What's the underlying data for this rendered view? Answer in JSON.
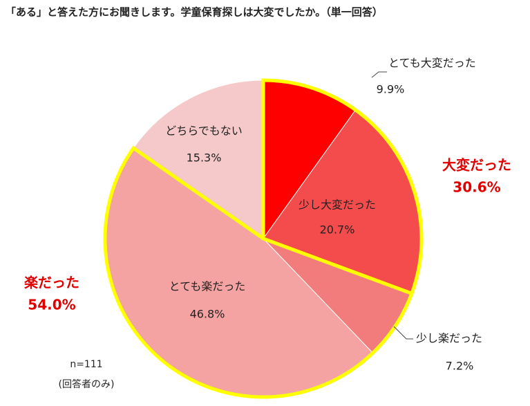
{
  "chart_data": {
    "type": "pie",
    "title": "「ある」と答えた方にお聞きします。学童保育探しは大変でしたか。（単一回答）",
    "categories": [
      "とても大変だった",
      "少し大変だった",
      "少し楽だった",
      "とても楽だった",
      "どちらでもない"
    ],
    "values": [
      9.9,
      20.7,
      7.2,
      46.8,
      15.3
    ],
    "value_labels": [
      "9.9%",
      "20.7%",
      "7.2%",
      "46.8%",
      "15.3%"
    ],
    "colors": [
      "#ff0000",
      "#f44c4c",
      "#f27c7c",
      "#f4a2a2",
      "#f5c9c9"
    ],
    "groups": [
      {
        "name": "大変だった",
        "value": 30.6,
        "value_label": "30.6%"
      },
      {
        "name": "楽だった",
        "value": 54.0,
        "value_label": "54.0%"
      }
    ],
    "group_color": "#ffff00",
    "notes": [
      "n=111",
      "(回答者のみ)"
    ]
  }
}
